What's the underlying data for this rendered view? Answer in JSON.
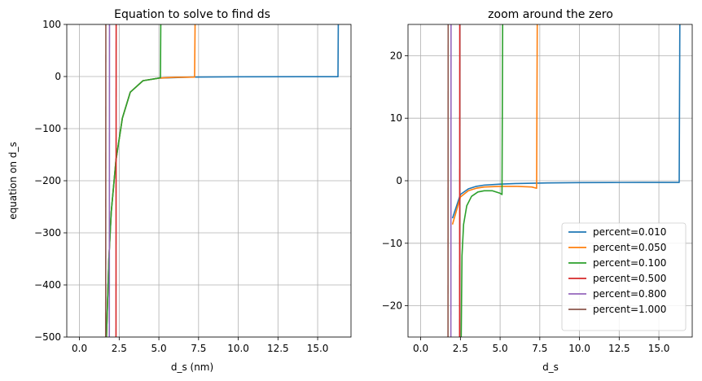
{
  "chart_data": [
    {
      "type": "line",
      "title": "Equation to solve to find ds",
      "xlabel": "d_s (nm)",
      "ylabel": "equation on d_s",
      "xlim": [
        -0.8,
        17.1
      ],
      "ylim": [
        -500,
        100
      ],
      "xticks": [
        0.0,
        2.5,
        5.0,
        7.5,
        10.0,
        12.5,
        15.0
      ],
      "xtick_labels": [
        "0.0",
        "2.5",
        "5.0",
        "7.5",
        "10.0",
        "12.5",
        "15.0"
      ],
      "yticks": [
        -500,
        -400,
        -300,
        -200,
        -100,
        0,
        100
      ],
      "ytick_labels": [
        "−500",
        "−400",
        "−300",
        "−200",
        "−100",
        "0",
        "100"
      ],
      "grid": true,
      "legend": null,
      "series": [
        {
          "color": "#1f77b4",
          "x": [
            1.7,
            1.85,
            2.0,
            2.3,
            2.7,
            3.2,
            4.0,
            5.0,
            7.0,
            10.0,
            14.0,
            16.28,
            16.3
          ],
          "y": [
            -500,
            -350,
            -260,
            -160,
            -80,
            -30,
            -8,
            -3,
            -1,
            -0.5,
            -0.3,
            -0.3,
            100
          ]
        },
        {
          "color": "#ff7f0e",
          "x": [
            1.7,
            1.85,
            2.0,
            2.3,
            2.7,
            3.2,
            4.0,
            5.0,
            6.0,
            7.25,
            7.28
          ],
          "y": [
            -500,
            -350,
            -260,
            -160,
            -80,
            -30,
            -8,
            -3,
            -1.5,
            -1,
            100
          ]
        },
        {
          "color": "#2ca02c",
          "x": [
            1.7,
            1.85,
            2.0,
            2.3,
            2.7,
            3.2,
            4.0,
            5.0,
            5.1,
            5.12
          ],
          "y": [
            -500,
            -350,
            -260,
            -160,
            -80,
            -30,
            -8,
            -3,
            -2,
            100
          ]
        },
        {
          "color": "#d62728",
          "x": [
            2.3,
            2.31
          ],
          "y": [
            -500,
            100
          ]
        },
        {
          "color": "#9467bd",
          "x": [
            1.88,
            1.89
          ],
          "y": [
            -500,
            100
          ]
        },
        {
          "color": "#8c564b",
          "x": [
            1.65,
            1.66
          ],
          "y": [
            -500,
            100
          ]
        }
      ]
    },
    {
      "type": "line",
      "title": "zoom around the zero",
      "xlabel": "d_s",
      "ylabel": "",
      "xlim": [
        -0.8,
        17.1
      ],
      "ylim": [
        -25,
        25
      ],
      "xticks": [
        0.0,
        2.5,
        5.0,
        7.5,
        10.0,
        12.5,
        15.0
      ],
      "xtick_labels": [
        "0.0",
        "2.5",
        "5.0",
        "7.5",
        "10.0",
        "12.5",
        "15.0"
      ],
      "yticks": [
        -20,
        -10,
        0,
        10,
        20
      ],
      "ytick_labels": [
        "−20",
        "−10",
        "0",
        "10",
        "20"
      ],
      "grid": true,
      "legend": "lower-right",
      "series": [
        {
          "name": "percent=0.010",
          "color": "#1f77b4",
          "x": [
            2.0,
            2.5,
            3.0,
            3.5,
            4.0,
            5.0,
            6.0,
            8.0,
            10.0,
            12.0,
            14.0,
            16.28,
            16.32
          ],
          "y": [
            -6,
            -2.2,
            -1.3,
            -0.9,
            -0.7,
            -0.55,
            -0.45,
            -0.35,
            -0.3,
            -0.28,
            -0.27,
            -0.27,
            25
          ]
        },
        {
          "name": "percent=0.050",
          "color": "#ff7f0e",
          "x": [
            2.0,
            2.5,
            3.0,
            3.5,
            4.0,
            5.0,
            6.0,
            7.0,
            7.3,
            7.34
          ],
          "y": [
            -7,
            -2.6,
            -1.6,
            -1.2,
            -1.0,
            -0.9,
            -0.9,
            -1.0,
            -1.2,
            25
          ]
        },
        {
          "name": "percent=0.100",
          "color": "#2ca02c",
          "x": [
            2.55,
            2.6,
            2.7,
            2.9,
            3.2,
            3.6,
            4.0,
            4.5,
            5.0,
            5.12,
            5.16
          ],
          "y": [
            -25,
            -12,
            -7,
            -4,
            -2.5,
            -1.8,
            -1.6,
            -1.6,
            -2.0,
            -2.2,
            25
          ]
        },
        {
          "name": "percent=0.500",
          "color": "#d62728",
          "x": [
            2.45,
            2.46
          ],
          "y": [
            -25,
            25
          ]
        },
        {
          "name": "percent=0.800",
          "color": "#9467bd",
          "x": [
            1.9,
            1.91
          ],
          "y": [
            -25,
            25
          ]
        },
        {
          "name": "percent=1.000",
          "color": "#8c564b",
          "x": [
            1.72,
            1.73
          ],
          "y": [
            -25,
            25
          ]
        }
      ]
    }
  ]
}
